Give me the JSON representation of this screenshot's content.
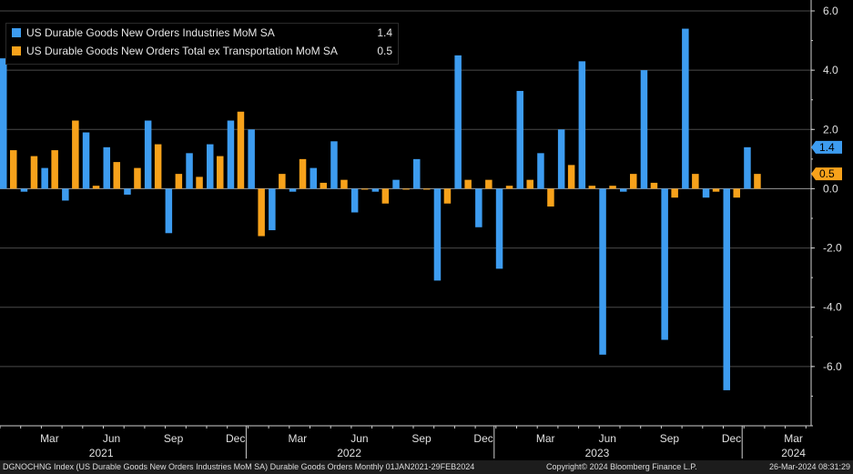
{
  "legend": [
    {
      "label": "US Durable Goods New Orders Industries MoM SA",
      "value": "1.4",
      "color": "#3d9cf0"
    },
    {
      "label": "US Durable Goods New Orders Total ex Transportation MoM SA",
      "value": "0.5",
      "color": "#f7a21b"
    }
  ],
  "footer": {
    "left": "DGNOCHNG Index (US Durable Goods New Orders Industries MoM SA) Durable Goods Orders  Monthly 01JAN2021-29FEB2024",
    "center": "Copyright© 2024 Bloomberg Finance L.P.",
    "right": "26-Mar-2024 08:31:29"
  },
  "chart_data": {
    "type": "bar",
    "categories": [
      "Jan 2021",
      "Feb 2021",
      "Mar 2021",
      "Apr 2021",
      "May 2021",
      "Jun 2021",
      "Jul 2021",
      "Aug 2021",
      "Sep 2021",
      "Oct 2021",
      "Nov 2021",
      "Dec 2021",
      "Jan 2022",
      "Feb 2022",
      "Mar 2022",
      "Apr 2022",
      "May 2022",
      "Jun 2022",
      "Jul 2022",
      "Aug 2022",
      "Sep 2022",
      "Oct 2022",
      "Nov 2022",
      "Dec 2022",
      "Jan 2023",
      "Feb 2023",
      "Mar 2023",
      "Apr 2023",
      "May 2023",
      "Jun 2023",
      "Jul 2023",
      "Aug 2023",
      "Sep 2023",
      "Oct 2023",
      "Nov 2023",
      "Dec 2023",
      "Jan 2024",
      "Feb 2024"
    ],
    "series": [
      {
        "name": "US Durable Goods New Orders Industries MoM SA",
        "color": "#3d9cf0",
        "values": [
          4.4,
          -0.1,
          0.7,
          -0.4,
          1.9,
          1.4,
          -0.2,
          2.3,
          -1.5,
          1.2,
          1.5,
          2.3,
          2.0,
          -1.4,
          -0.1,
          0.7,
          1.6,
          -0.8,
          -0.1,
          0.3,
          1.0,
          -3.1,
          4.5,
          -1.3,
          -2.7,
          3.3,
          1.2,
          2.0,
          4.3,
          -5.6,
          -0.1,
          4.0,
          -5.1,
          5.4,
          -0.3,
          -6.8,
          1.4,
          null
        ]
      },
      {
        "name": "US Durable Goods New Orders Total ex Transportation MoM SA",
        "color": "#f7a21b",
        "values": [
          1.3,
          1.1,
          1.3,
          2.3,
          0.1,
          0.9,
          0.7,
          1.5,
          0.5,
          0.4,
          1.1,
          2.6,
          -1.6,
          0.5,
          1.0,
          0.2,
          0.3,
          0.0,
          -0.5,
          0.0,
          0.0,
          -0.5,
          0.3,
          0.3,
          0.1,
          0.3,
          -0.6,
          0.8,
          0.1,
          0.1,
          0.5,
          0.2,
          -0.3,
          0.5,
          -0.1,
          -0.3,
          0.5,
          null
        ]
      }
    ],
    "ylim": [
      -8,
      6
    ],
    "yticks": [
      "6.0",
      "4.0",
      "2.0",
      "0.0",
      "-2.0",
      "-4.0",
      "-6.0"
    ],
    "ytick_values": [
      6,
      4,
      2,
      0,
      -2,
      -4,
      -6
    ],
    "xtick_months": [
      "Mar",
      "Jun",
      "Sep",
      "Dec",
      "Mar",
      "Jun",
      "Sep",
      "Dec",
      "Mar",
      "Jun",
      "Sep",
      "Dec",
      "Mar"
    ],
    "xtick_indices": [
      2,
      5,
      8,
      11,
      14,
      17,
      20,
      23,
      26,
      29,
      32,
      35,
      38
    ],
    "year_labels": [
      "2021",
      "2022",
      "2023",
      "2024"
    ],
    "year_label_indices": [
      4.5,
      16.5,
      28.5,
      38
    ],
    "last_value_labels": [
      "1.4",
      "0.5"
    ],
    "grid": true,
    "legend_position": "top-left"
  }
}
